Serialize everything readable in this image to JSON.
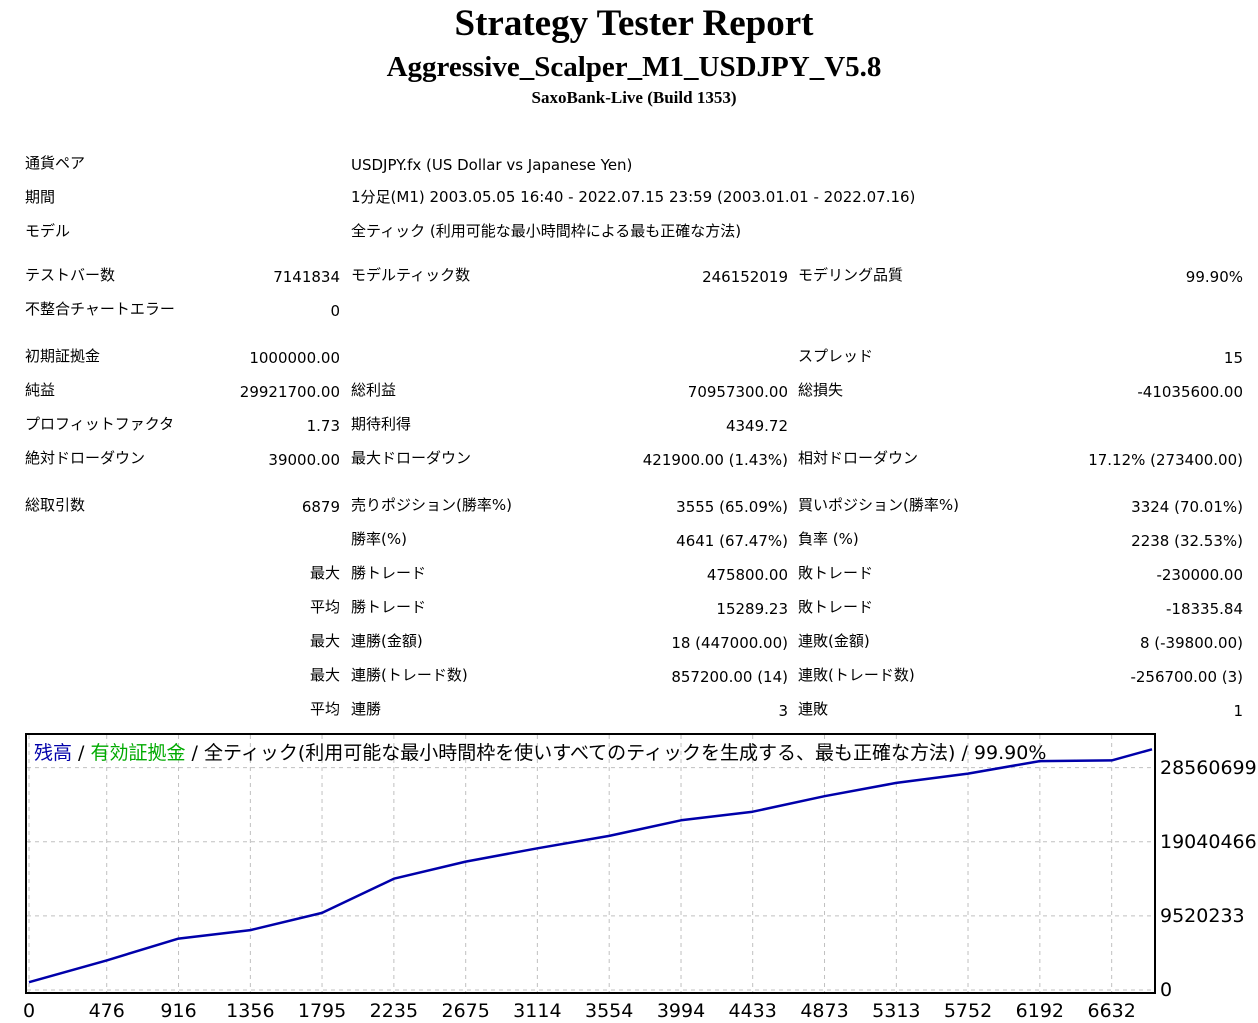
{
  "header": {
    "title": "Strategy Tester Report",
    "subtitle": "Aggressive_Scalper_M1_USDJPY_V5.8",
    "server": "SaxoBank-Live (Build 1353)"
  },
  "info": {
    "pair_label": "通貨ペア",
    "pair_value": "USDJPY.fx (US Dollar vs Japanese Yen)",
    "period_label": "期間",
    "period_value": "1分足(M1) 2003.05.05 16:40 - 2022.07.15 23:59 (2003.01.01 - 2022.07.16)",
    "model_label": "モデル",
    "model_value": "全ティック (利用可能な最小時間枠による最も正確な方法)"
  },
  "stats": {
    "test_bars_label": "テストバー数",
    "test_bars": "7141834",
    "model_ticks_label": "モデルティック数",
    "model_ticks": "246152019",
    "model_quality_label": "モデリング品質",
    "model_quality": "99.90%",
    "mismatch_label": "不整合チャートエラー",
    "mismatch": "0",
    "deposit_label": "初期証拠金",
    "deposit": "1000000.00",
    "spread_label": "スプレッド",
    "spread": "15",
    "net_label": "純益",
    "net": "29921700.00",
    "gross_profit_label": "総利益",
    "gross_profit": "70957300.00",
    "gross_loss_label": "総損失",
    "gross_loss": "-41035600.00",
    "pf_label": "プロフィットファクタ",
    "pf": "1.73",
    "expected_label": "期待利得",
    "expected": "4349.72",
    "abs_dd_label": "絶対ドローダウン",
    "abs_dd": "39000.00",
    "max_dd_label": "最大ドローダウン",
    "max_dd": "421900.00 (1.43%)",
    "rel_dd_label": "相対ドローダウン",
    "rel_dd": "17.12% (273400.00)",
    "total_trades_label": "総取引数",
    "total_trades": "6879",
    "short_label": "売りポジション(勝率%)",
    "short": "3555 (65.09%)",
    "long_label": "買いポジション(勝率%)",
    "long": "3324 (70.01%)",
    "win_rate_label": "勝率(%)",
    "win_rate": "4641 (67.47%)",
    "loss_rate_label": "負率 (%)",
    "loss_rate": "2238 (32.53%)",
    "max_label_1": "最大",
    "largest_win_label": "勝トレード",
    "largest_win": "475800.00",
    "largest_loss_label": "敗トレード",
    "largest_loss": "-230000.00",
    "avg_label_1": "平均",
    "avg_win_label": "勝トレード",
    "avg_win": "15289.23",
    "avg_loss_label": "敗トレード",
    "avg_loss": "-18335.84",
    "max_label_2": "最大",
    "max_cons_wins_label": "連勝(金額)",
    "max_cons_wins": "18 (447000.00)",
    "max_cons_losses_label": "連敗(金額)",
    "max_cons_losses": "8 (-39800.00)",
    "max_label_3": "最大",
    "max_cons_profit_label": "連勝(トレード数)",
    "max_cons_profit": "857200.00 (14)",
    "max_cons_loss_label": "連敗(トレード数)",
    "max_cons_loss": "-256700.00 (3)",
    "avg_label_2": "平均",
    "avg_cons_wins_label": "連勝",
    "avg_cons_wins": "3",
    "avg_cons_losses_label": "連敗",
    "avg_cons_losses": "1"
  },
  "chart_caption": {
    "balance": "残高",
    "sep1": " / ",
    "equity": "有効証拠金",
    "rest": " / 全ティック(利用可能な最小時間枠を使いすべてのティックを生成する、最も正確な方法) / 99.90%"
  },
  "colors": {
    "balance": "#0000aa",
    "equity": "#00aa00",
    "grid": "#c0c0c0"
  },
  "chart_data": {
    "type": "line",
    "series": [
      {
        "name": "残高",
        "color": "#0000aa"
      }
    ],
    "x": [
      0,
      476,
      916,
      1356,
      1795,
      2235,
      2675,
      3114,
      3554,
      3994,
      4433,
      4873,
      5313,
      5752,
      6192,
      6632,
      6879
    ],
    "y": [
      1000000,
      3800000,
      6600000,
      7700000,
      9900000,
      14300000,
      16500000,
      18200000,
      19800000,
      21800000,
      22900000,
      24900000,
      26600000,
      27800000,
      29400000,
      29500000,
      30921700
    ],
    "x_ticks": [
      "0",
      "476",
      "916",
      "1356",
      "1795",
      "2235",
      "2675",
      "3114",
      "3554",
      "3994",
      "4433",
      "4873",
      "5313",
      "5752",
      "6192",
      "6632"
    ],
    "y_ticks": [
      "0",
      "9520233",
      "19040466",
      "28560699"
    ],
    "y_tick_values": [
      0,
      9520233,
      19040466,
      28560699
    ],
    "xlim": [
      0,
      6879
    ],
    "ylim": [
      0,
      32500000
    ],
    "grid": true
  }
}
